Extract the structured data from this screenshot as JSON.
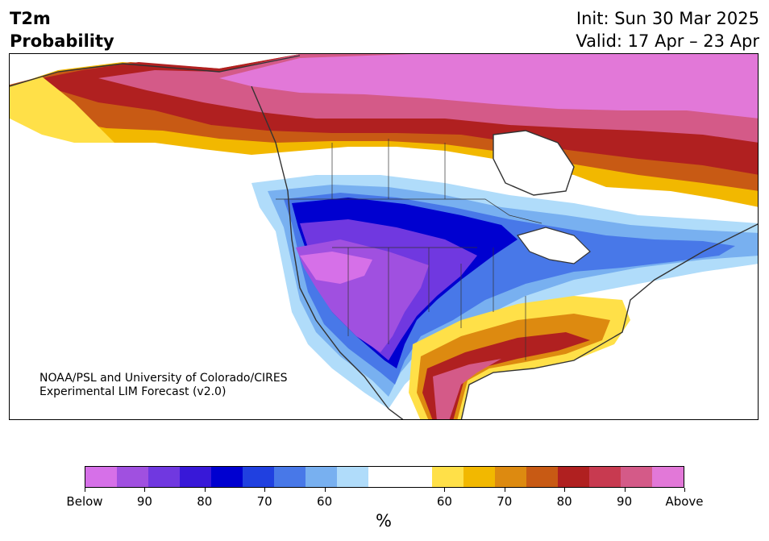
{
  "title": {
    "line1": "T2m",
    "line2": "Probability"
  },
  "init": {
    "line1": "Init: Sun 30 Mar 2025",
    "line2": "Valid: 17 Apr – 23 Apr"
  },
  "credit": {
    "line1": "NOAA/PSL and University of Colorado/CIRES",
    "line2": "Experimental LIM Forecast (v2.0)"
  },
  "colorbar": {
    "colors": [
      "#d670e8",
      "#a050e0",
      "#7038e0",
      "#3818d8",
      "#0000d0",
      "#2040e0",
      "#4878e8",
      "#78b0f0",
      "#b0dcfa",
      "#ffffff",
      "#ffe048",
      "#f2b800",
      "#dd8a10",
      "#c85a14",
      "#b02020",
      "#c83a50",
      "#d45a88",
      "#e278d8"
    ],
    "ticks": [
      "Below",
      "90",
      "80",
      "70",
      "60",
      "60",
      "70",
      "80",
      "90",
      "Above"
    ],
    "unit": "%"
  }
}
